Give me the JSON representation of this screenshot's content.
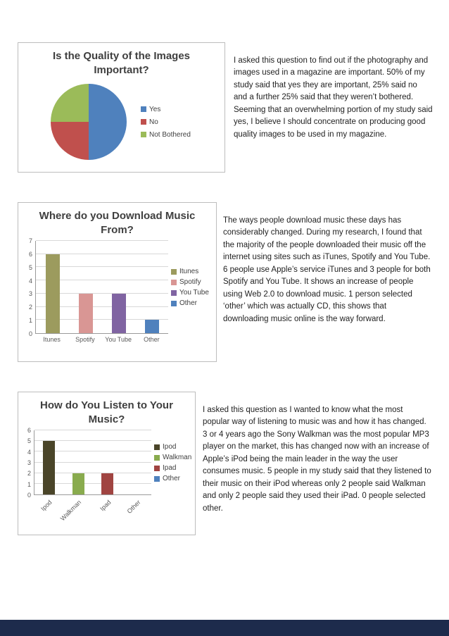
{
  "page": {
    "background": "#ffffff",
    "footer_color": "#1d2b4c",
    "box_border_color": "#bdbdbd"
  },
  "sections": [
    {
      "name": "image-quality",
      "paragraph": "I asked this question to find out if the photography and images used in a magazine are important. 50% of my study said that yes they are important, 25% said no and a further 25% said that they weren’t bothered. Seeming that an overwhelming portion of my study said yes, I believe I should concentrate on producing good quality images to be used in my magazine."
    },
    {
      "name": "download-source",
      "paragraph": "The ways people download music these days has considerably changed. During my research, I found that the majority of the people downloaded their music off the internet using sites such as iTunes, Spotify and You Tube. 6 people use Apple’s service iTunes and 3 people for both Spotify and You Tube. It shows an increase of people using Web 2.0 to download music. 1 person selected ‘other’ which was actually CD, this shows that downloading music online is the way forward."
    },
    {
      "name": "listening-device",
      "paragraph": "I asked this question as I wanted to know what the most popular way of listening to music was and how it has changed. 3 or 4 years ago the Sony Walkman was the most popular MP3 player on the market, this has changed now with an increase of Apple’s iPod being the main leader in the way the user consumes music. 5 people in my study said that they listened to their music on their iPod whereas only 2 people said Walkman and only 2 people said they used their iPad. 0 people selected other."
    }
  ],
  "chart_data": [
    {
      "type": "pie",
      "title": "Is the Quality of the Images Important?",
      "labels": [
        "Yes",
        "No",
        "Not Bothered"
      ],
      "values": [
        50,
        25,
        25
      ],
      "unit": "percent",
      "colors": [
        "#4f81bd",
        "#c0504d",
        "#9bbb59"
      ],
      "legend_position": "right"
    },
    {
      "type": "bar",
      "title": "Where do you Download Music From?",
      "categories": [
        "Itunes",
        "Spotify",
        "You Tube",
        "Other"
      ],
      "values": [
        6,
        3,
        3,
        1
      ],
      "colors": [
        "#9c9b5e",
        "#d99694",
        "#8064a2",
        "#4f81bd"
      ],
      "legend": [
        "Itunes",
        "Spotify",
        "You Tube",
        "Other"
      ],
      "legend_position": "right",
      "xlabel": "",
      "ylabel": "",
      "ylim": [
        0,
        7
      ],
      "ytick_step": 1,
      "grid": true
    },
    {
      "type": "bar",
      "title": "How do You Listen to Your Music?",
      "categories": [
        "Ipod",
        "Walkman",
        "Ipad",
        "Other"
      ],
      "values": [
        5,
        2,
        2,
        0
      ],
      "colors": [
        "#4a4529",
        "#89ab4e",
        "#a04441",
        "#4f81bd"
      ],
      "legend": [
        "Ipod",
        "Walkman",
        "Ipad",
        "Other"
      ],
      "legend_position": "right",
      "xlabel": "",
      "ylabel": "",
      "ylim": [
        0,
        6
      ],
      "ytick_step": 1,
      "grid": true,
      "xlabel_rotation": -45
    }
  ]
}
